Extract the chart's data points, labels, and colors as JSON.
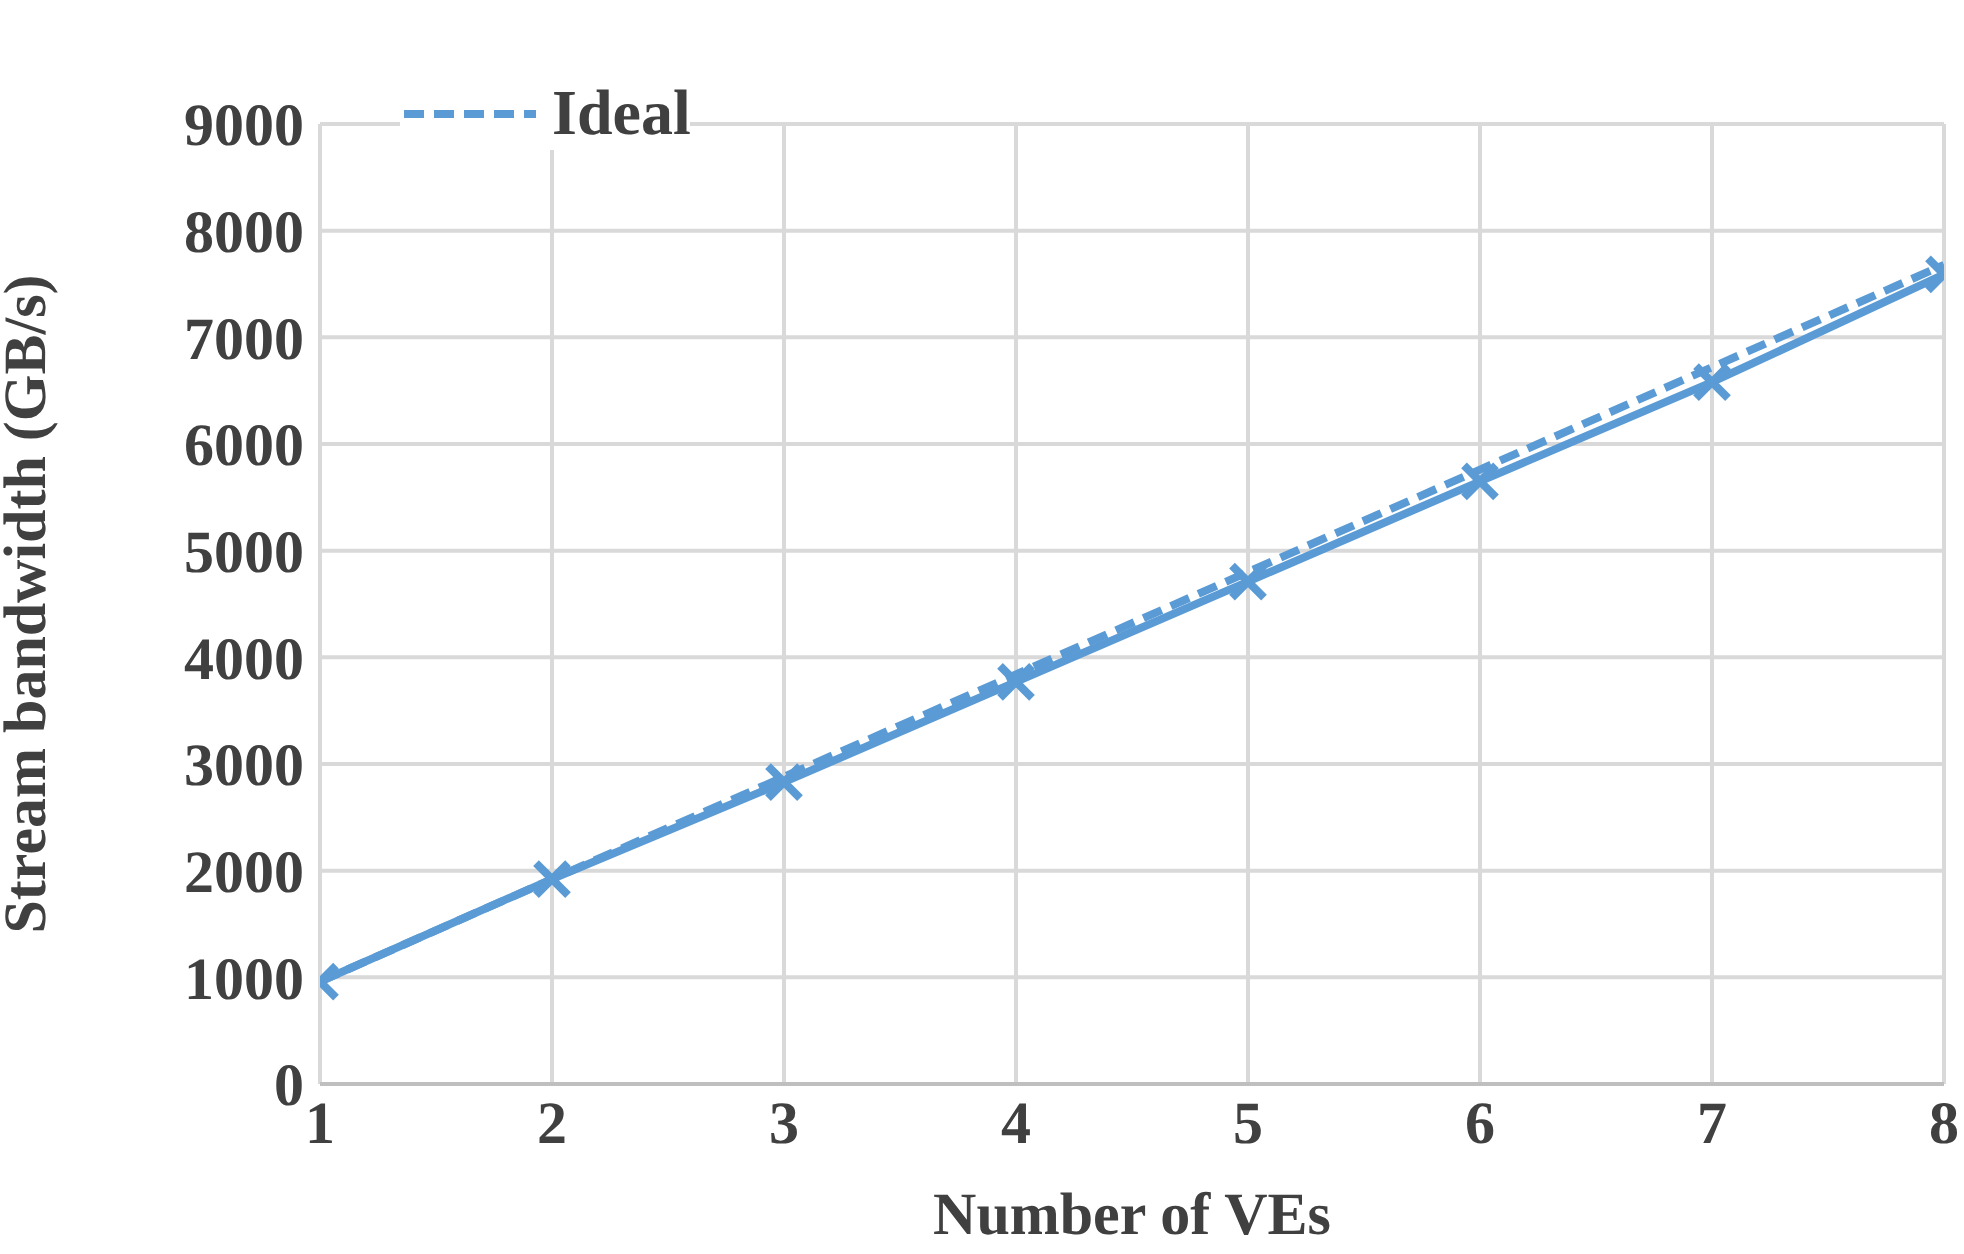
{
  "chart_data": {
    "type": "line",
    "xlabel": "Number of VEs",
    "ylabel": "Stream bandwidth (GB/s)",
    "x": [
      1,
      2,
      3,
      4,
      5,
      6,
      7,
      8
    ],
    "series": [
      {
        "color": "#5b9bd5",
        "marker": "cross",
        "line_style": "solid",
        "values": [
          960,
          1920,
          2830,
          3770,
          4710,
          5650,
          6580,
          7590
        ]
      },
      {
        "name": "Ideal",
        "color": "#5b9bd5",
        "marker": "none",
        "line_style": "dashed",
        "values": [
          960,
          1920,
          2880,
          3840,
          4800,
          5760,
          6720,
          7680
        ]
      }
    ],
    "xlim": [
      1,
      8
    ],
    "xticks": [
      1,
      2,
      3,
      4,
      5,
      6,
      7,
      8
    ],
    "ylim": [
      0,
      9000
    ],
    "yticks": [
      0,
      1000,
      2000,
      3000,
      4000,
      5000,
      6000,
      7000,
      8000,
      9000
    ],
    "grid": true,
    "legend": "top left"
  }
}
